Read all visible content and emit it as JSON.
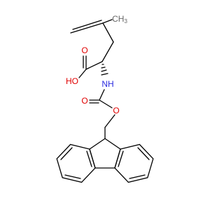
{
  "molecule": {
    "atoms": {
      "methyl": {
        "main": "CH",
        "subscript": "3"
      },
      "hydroxyl": "HO",
      "acid_oxygen": "O",
      "amine": "NH",
      "carbamate_oxygen": "O",
      "ester_oxygen": "O"
    }
  }
}
